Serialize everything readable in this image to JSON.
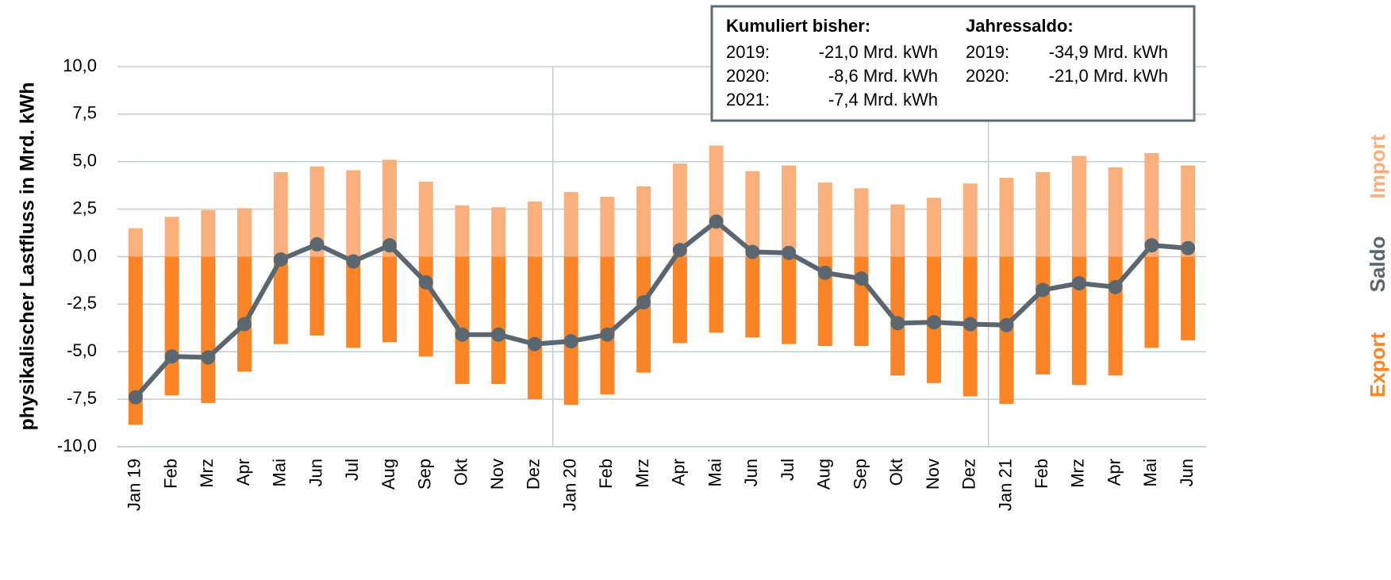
{
  "chart_data": {
    "type": "bar",
    "y_label": "physikalischer Lastfluss in Mrd. kWh",
    "categories": [
      "Jan 19",
      "Feb",
      "Mrz",
      "Apr",
      "Mai",
      "Jun",
      "Jul",
      "Aug",
      "Sep",
      "Okt",
      "Nov",
      "Dez",
      "Jan 20",
      "Feb",
      "Mrz",
      "Apr",
      "Mai",
      "Jun",
      "Jul",
      "Aug",
      "Sep",
      "Okt",
      "Nov",
      "Dez",
      "Jan 21",
      "Feb",
      "Mrz",
      "Apr",
      "Mai",
      "Jun"
    ],
    "series": [
      {
        "name": "Import",
        "type": "bar",
        "color": "#f9b07c",
        "values": [
          1.5,
          2.1,
          2.45,
          2.55,
          4.45,
          4.75,
          4.55,
          5.1,
          3.95,
          2.7,
          2.6,
          2.9,
          3.4,
          3.15,
          3.7,
          4.9,
          5.85,
          4.5,
          4.8,
          3.9,
          3.6,
          2.75,
          3.1,
          3.85,
          4.15,
          4.45,
          5.3,
          4.7,
          5.45,
          4.8
        ]
      },
      {
        "name": "Export",
        "type": "bar",
        "color": "#fb8526",
        "values": [
          -8.85,
          -7.3,
          -7.7,
          -6.05,
          -4.6,
          -4.15,
          -4.8,
          -4.5,
          -5.25,
          -6.7,
          -6.7,
          -7.5,
          -7.8,
          -7.25,
          -6.1,
          -4.55,
          -4.0,
          -4.25,
          -4.6,
          -4.7,
          -4.7,
          -6.25,
          -6.65,
          -7.35,
          -7.75,
          -6.2,
          -6.75,
          -6.25,
          -4.8,
          -4.4
        ]
      },
      {
        "name": "Saldo",
        "type": "line",
        "color": "#5a6670",
        "values": [
          -7.4,
          -5.25,
          -5.3,
          -3.55,
          -0.15,
          0.65,
          -0.25,
          0.6,
          -1.35,
          -4.1,
          -4.1,
          -4.6,
          -4.45,
          -4.1,
          -2.4,
          0.35,
          1.85,
          0.25,
          0.2,
          -0.85,
          -1.15,
          -3.5,
          -3.45,
          -3.55,
          -3.6,
          -1.75,
          -1.4,
          -1.6,
          0.6,
          0.45
        ]
      }
    ],
    "ylim": [
      -10,
      10
    ],
    "yticks": [
      {
        "value": -10,
        "label": "-10,0"
      },
      {
        "value": -7.5,
        "label": "-7,5"
      },
      {
        "value": -5,
        "label": "-5,0"
      },
      {
        "value": -2.5,
        "label": "-2,5"
      },
      {
        "value": 0,
        "label": "0,0"
      },
      {
        "value": 2.5,
        "label": "2,5"
      },
      {
        "value": 5,
        "label": "5,0"
      },
      {
        "value": 7.5,
        "label": "7,5"
      },
      {
        "value": 10,
        "label": "10,0"
      }
    ],
    "grid": true,
    "legend": "right",
    "info_box": {
      "columns": [
        {
          "heading": "Kumuliert bisher:",
          "rows": [
            [
              "2019:",
              "-21,0 Mrd. kWh"
            ],
            [
              "2020:",
              "-8,6 Mrd. kWh"
            ],
            [
              "2021:",
              "-7,4 Mrd. kWh"
            ]
          ]
        },
        {
          "heading": "Jahressaldo:",
          "rows": [
            [
              "2019:",
              "-34,9 Mrd. kWh"
            ],
            [
              "2020:",
              "-21,0 Mrd. kWh"
            ]
          ]
        }
      ]
    }
  }
}
